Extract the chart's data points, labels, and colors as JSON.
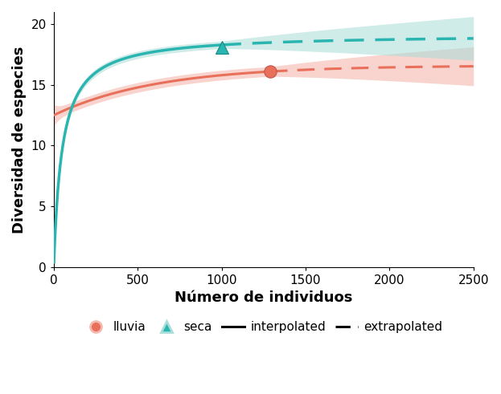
{
  "title": "",
  "xlabel": "Número de individuos",
  "ylabel": "Diversidad de especies",
  "xlim": [
    0,
    2500
  ],
  "ylim": [
    0,
    21
  ],
  "xticks": [
    0,
    500,
    1000,
    1500,
    2000,
    2500
  ],
  "yticks": [
    0,
    5,
    10,
    15,
    20
  ],
  "lluvia_color": "#E8705A",
  "seca_color": "#2AB5B0",
  "lluvia_fill": "#F5B8AE",
  "seca_fill": "#A8DDD8",
  "lluvia_dot_x": 1290,
  "lluvia_dot_y": 16.1,
  "seca_dot_x": 1000,
  "seca_dot_y": 18.1,
  "lluvia_interp_end": 1290,
  "seca_interp_end": 1000,
  "background_color": "#FFFFFF",
  "axis_label_fontsize": 13,
  "tick_fontsize": 11
}
